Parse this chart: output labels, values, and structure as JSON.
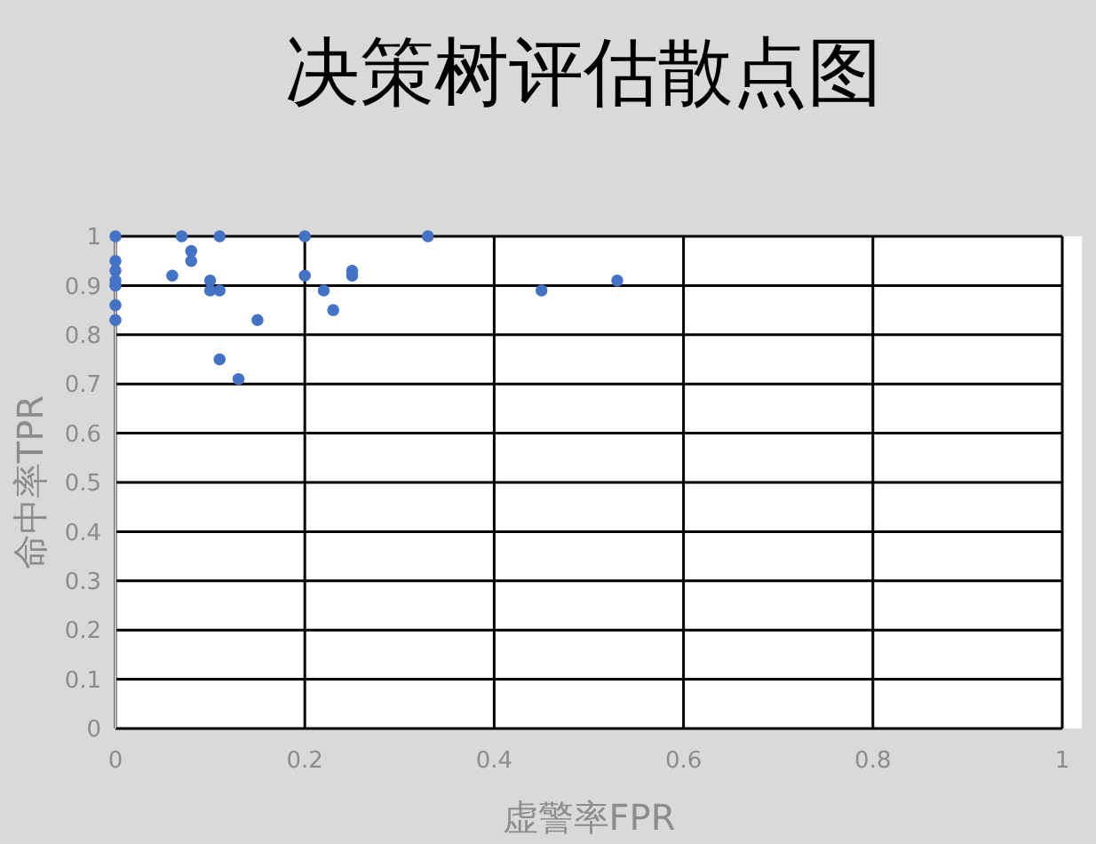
{
  "chart_data": {
    "type": "scatter",
    "title": "决策树评估散点图",
    "xlabel": "虚警率FPR",
    "ylabel": "命中率TPR",
    "x": [
      0,
      0,
      0,
      0,
      0,
      0,
      0,
      0.07,
      0.11,
      0.2,
      0.33,
      0.08,
      0.08,
      0.06,
      0.1,
      0.1,
      0.11,
      0.15,
      0.2,
      0.22,
      0.23,
      0.25,
      0.25,
      0.11,
      0.13,
      0.45,
      0.53
    ],
    "values": [
      1,
      0.95,
      0.93,
      0.91,
      0.9,
      0.86,
      0.83,
      1,
      1,
      1,
      1,
      0.97,
      0.95,
      0.92,
      0.91,
      0.89,
      0.89,
      0.83,
      0.92,
      0.89,
      0.85,
      0.93,
      0.92,
      0.75,
      0.71,
      0.89,
      0.91
    ],
    "color": "#4472c4",
    "marker": "circle",
    "xlim": [
      0,
      1
    ],
    "xticks": [
      0,
      0.2,
      0.4,
      0.6,
      0.8,
      1
    ],
    "ylim": [
      0,
      1
    ],
    "yticks": [
      0,
      0.1,
      0.2,
      0.3,
      0.4,
      0.5,
      0.6,
      0.7,
      0.8,
      0.9,
      1
    ],
    "grid": true
  }
}
